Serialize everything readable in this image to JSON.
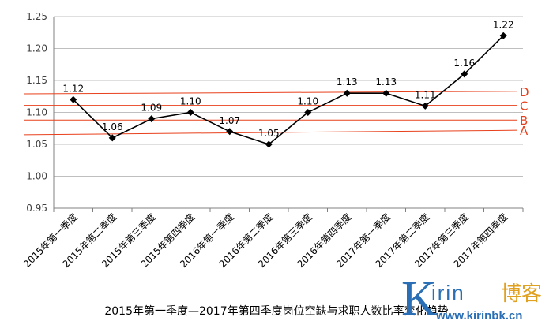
{
  "chart_data": {
    "type": "line",
    "title": "2015年第一季度—2017年第四季度岗位空缺与求职人数比率变化趋势",
    "categories": [
      "2015年第一季度",
      "2015年第二季度",
      "2015年第三季度",
      "2015年第四季度",
      "2016年第一季度",
      "2016年第二季度",
      "2016年第三季度",
      "2016年第四季度",
      "2017年第一季度",
      "2017年第二季度",
      "2017年第三季度",
      "2017年第四季度"
    ],
    "series": [
      {
        "values": [
          1.12,
          1.06,
          1.09,
          1.1,
          1.07,
          1.05,
          1.1,
          1.13,
          1.13,
          1.11,
          1.16,
          1.22
        ],
        "labels": [
          "1.12",
          "1.06",
          "1.09",
          "1.10",
          "1.07",
          "1.05",
          "1.10",
          "1.13",
          "1.13",
          "1.11",
          "1.16",
          "1.22"
        ],
        "color": "#000000"
      }
    ],
    "ylim": [
      0.95,
      1.25
    ],
    "yticks": [
      "0.95",
      "1.00",
      "1.05",
      "1.10",
      "1.15",
      "1.20",
      "1.25"
    ],
    "reference_lines": [
      {
        "label": "A",
        "start": 1.065,
        "end": 1.072
      },
      {
        "label": "B",
        "start": 1.088,
        "end": 1.088
      },
      {
        "label": "C",
        "start": 1.111,
        "end": 1.111
      },
      {
        "label": "D",
        "start": 1.129,
        "end": 1.133
      }
    ],
    "reference_color": "#e8401c",
    "grid": true
  },
  "watermark": {
    "k": "K",
    "name": "irin",
    "cn": "博客",
    "url": "www.kirinbk.cn"
  }
}
